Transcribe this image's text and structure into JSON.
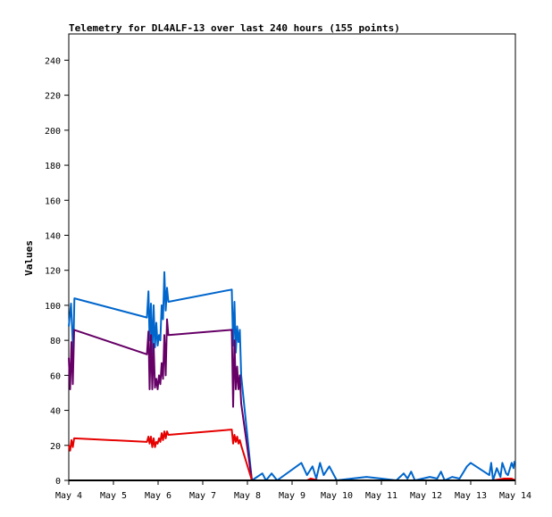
{
  "chart_data": {
    "type": "line",
    "title": "Telemetry for DL4ALF-13 over last 240 hours (155 points)",
    "xlabel": "",
    "ylabel": "Values",
    "xlim": [
      "May 4 00:00",
      "May 14 00:00"
    ],
    "ylim": [
      0,
      255
    ],
    "grid": false,
    "x_tick_labels": [
      "May 4",
      "May 5",
      "May 6",
      "May 7",
      "May 8",
      "May 9",
      "May 10",
      "May 11",
      "May 12",
      "May 13",
      "May 14"
    ],
    "y_tick_labels": [
      "0",
      "20",
      "40",
      "60",
      "80",
      "100",
      "120",
      "140",
      "160",
      "180",
      "200",
      "220",
      "240"
    ],
    "series": [
      {
        "color": "#0066cc",
        "points": [
          [
            "May 4 00:00",
            88
          ],
          [
            "May 4 01:12",
            101
          ],
          [
            "May 4 02:24",
            72
          ],
          [
            "May 4 03:00",
            104
          ],
          [
            "May 5 18:00",
            93
          ],
          [
            "May 5 18:48",
            108
          ],
          [
            "May 5 19:26",
            80
          ],
          [
            "May 5 20:10",
            101
          ],
          [
            "May 5 20:53",
            72
          ],
          [
            "May 5 21:36",
            100
          ],
          [
            "May 5 22:19",
            76
          ],
          [
            "May 5 23:02",
            90
          ],
          [
            "May 5 23:46",
            77
          ],
          [
            "May 6 00:29",
            83
          ],
          [
            "May 6 01:12",
            80
          ],
          [
            "May 6 01:55",
            100
          ],
          [
            "May 6 02:38",
            92
          ],
          [
            "May 6 03:22",
            119
          ],
          [
            "May 6 04:05",
            97
          ],
          [
            "May 6 04:48",
            110
          ],
          [
            "May 6 05:31",
            102
          ],
          [
            "May 7 15:36",
            109
          ],
          [
            "May 7 16:19",
            77
          ],
          [
            "May 7 17:02",
            102
          ],
          [
            "May 7 17:46",
            73
          ],
          [
            "May 7 18:29",
            88
          ],
          [
            "May 7 19:12",
            79
          ],
          [
            "May 7 19:55",
            86
          ],
          [
            "May 7 20:38",
            60
          ],
          [
            "May 8 02:24",
            0
          ],
          [
            "May 8 08:00",
            4
          ],
          [
            "May 8 10:00",
            0
          ],
          [
            "May 8 13:00",
            4
          ],
          [
            "May 8 16:00",
            0
          ],
          [
            "May 9 05:00",
            10
          ],
          [
            "May 9 08:00",
            3
          ],
          [
            "May 9 11:00",
            8
          ],
          [
            "May 9 13:00",
            1
          ],
          [
            "May 9 15:00",
            10
          ],
          [
            "May 9 17:00",
            3
          ],
          [
            "May 9 20:00",
            8
          ],
          [
            "May 10 00:00",
            0
          ],
          [
            "May 10 08:00",
            1
          ],
          [
            "May 10 16:00",
            2
          ],
          [
            "May 11 00:00",
            1
          ],
          [
            "May 11 08:00",
            0
          ],
          [
            "May 11 12:00",
            4
          ],
          [
            "May 11 14:00",
            1
          ],
          [
            "May 11 16:00",
            5
          ],
          [
            "May 11 18:00",
            0
          ],
          [
            "May 12 02:00",
            2
          ],
          [
            "May 12 06:00",
            1
          ],
          [
            "May 12 08:00",
            5
          ],
          [
            "May 12 10:00",
            0
          ],
          [
            "May 12 14:00",
            2
          ],
          [
            "May 12 18:00",
            1
          ],
          [
            "May 12 22:00",
            8
          ],
          [
            "May 13 00:00",
            10
          ],
          [
            "May 13 10:00",
            3
          ],
          [
            "May 13 11:00",
            10
          ],
          [
            "May 13 12:00",
            0
          ],
          [
            "May 13 14:00",
            7
          ],
          [
            "May 13 16:00",
            2
          ],
          [
            "May 13 17:00",
            10
          ],
          [
            "May 13 19:00",
            4
          ],
          [
            "May 13 20:00",
            3
          ],
          [
            "May 13 22:00",
            10
          ],
          [
            "May 13 23:00",
            7
          ],
          [
            "May 13 23:30",
            11
          ]
        ]
      },
      {
        "color": "#660066",
        "points": [
          [
            "May 4 00:00",
            70
          ],
          [
            "May 4 00:43",
            52
          ],
          [
            "May 4 01:26",
            79
          ],
          [
            "May 4 02:10",
            55
          ],
          [
            "May 4 02:53",
            86
          ],
          [
            "May 5 18:00",
            72
          ],
          [
            "May 5 18:48",
            85
          ],
          [
            "May 5 19:26",
            52
          ],
          [
            "May 5 20:10",
            83
          ],
          [
            "May 5 20:53",
            52
          ],
          [
            "May 5 21:36",
            78
          ],
          [
            "May 5 22:19",
            53
          ],
          [
            "May 5 23:02",
            58
          ],
          [
            "May 5 23:46",
            52
          ],
          [
            "May 6 00:29",
            60
          ],
          [
            "May 6 01:12",
            55
          ],
          [
            "May 6 01:55",
            67
          ],
          [
            "May 6 02:38",
            58
          ],
          [
            "May 6 03:22",
            83
          ],
          [
            "May 6 04:05",
            60
          ],
          [
            "May 6 04:48",
            92
          ],
          [
            "May 6 05:31",
            83
          ],
          [
            "May 7 15:36",
            86
          ],
          [
            "May 7 16:19",
            42
          ],
          [
            "May 7 17:02",
            80
          ],
          [
            "May 7 17:46",
            52
          ],
          [
            "May 7 18:29",
            65
          ],
          [
            "May 7 19:12",
            52
          ],
          [
            "May 7 19:55",
            60
          ],
          [
            "May 7 20:38",
            44
          ],
          [
            "May 8 02:24",
            0
          ]
        ]
      },
      {
        "color": "#e60000",
        "points": [
          [
            "May 4 00:00",
            20
          ],
          [
            "May 4 00:43",
            17
          ],
          [
            "May 4 01:26",
            23
          ],
          [
            "May 4 02:10",
            19
          ],
          [
            "May 4 02:53",
            24
          ],
          [
            "May 5 18:00",
            22
          ],
          [
            "May 5 18:48",
            25
          ],
          [
            "May 5 19:26",
            21
          ],
          [
            "May 5 20:10",
            25
          ],
          [
            "May 5 20:53",
            19
          ],
          [
            "May 5 21:36",
            24
          ],
          [
            "May 5 22:19",
            19
          ],
          [
            "May 5 23:02",
            22
          ],
          [
            "May 5 23:46",
            21
          ],
          [
            "May 6 00:29",
            24
          ],
          [
            "May 6 01:12",
            22
          ],
          [
            "May 6 01:55",
            27
          ],
          [
            "May 6 02:38",
            23
          ],
          [
            "May 6 03:22",
            28
          ],
          [
            "May 6 04:05",
            24
          ],
          [
            "May 6 04:48",
            28
          ],
          [
            "May 6 05:31",
            26
          ],
          [
            "May 7 15:36",
            29
          ],
          [
            "May 7 16:19",
            21
          ],
          [
            "May 7 17:02",
            26
          ],
          [
            "May 7 17:46",
            22
          ],
          [
            "May 7 18:29",
            25
          ],
          [
            "May 7 19:12",
            21
          ],
          [
            "May 7 19:55",
            23
          ],
          [
            "May 7 20:38",
            20
          ],
          [
            "May 8 02:24",
            0
          ],
          [
            "May 9 08:00",
            0
          ],
          [
            "May 9 10:00",
            1
          ],
          [
            "May 9 14:00",
            0
          ],
          [
            "May 13 12:00",
            0
          ],
          [
            "May 13 18:00",
            1
          ],
          [
            "May 13 22:00",
            1
          ],
          [
            "May 14 00:00",
            0
          ]
        ]
      },
      {
        "color": "#000000",
        "points": [
          [
            "May 4 00:00",
            0
          ],
          [
            "May 14 00:00",
            0
          ]
        ]
      }
    ]
  }
}
